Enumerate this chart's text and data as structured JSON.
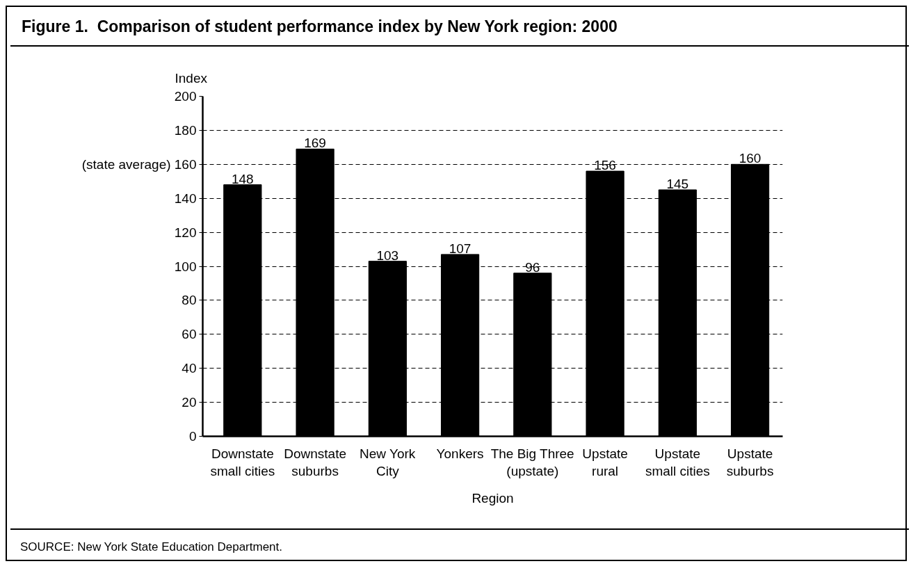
{
  "chart_data": {
    "type": "bar",
    "title": "Figure 1.  Comparison of student performance index by New York region: 2000",
    "xlabel": "Region",
    "ylabel": "Index",
    "categories": [
      "Downstate\nsmall cities",
      "Downstate\nsuburbs",
      "New York\nCity",
      "Yonkers",
      "The Big Three\n(upstate)",
      "Upstate\nrural",
      "Upstate\nsmall cities",
      "Upstate\nsuburbs"
    ],
    "values": [
      148,
      169,
      103,
      107,
      96,
      156,
      145,
      160
    ],
    "color": "#000000",
    "ylim": [
      0,
      200
    ],
    "yticks": [
      0,
      20,
      40,
      60,
      80,
      100,
      120,
      140,
      {
        "value": 160,
        "label": "(state average) 160"
      },
      180,
      200
    ],
    "grid": "y",
    "data_labels": true,
    "annotations": [
      "SOURCE: New York State Education Department."
    ]
  }
}
